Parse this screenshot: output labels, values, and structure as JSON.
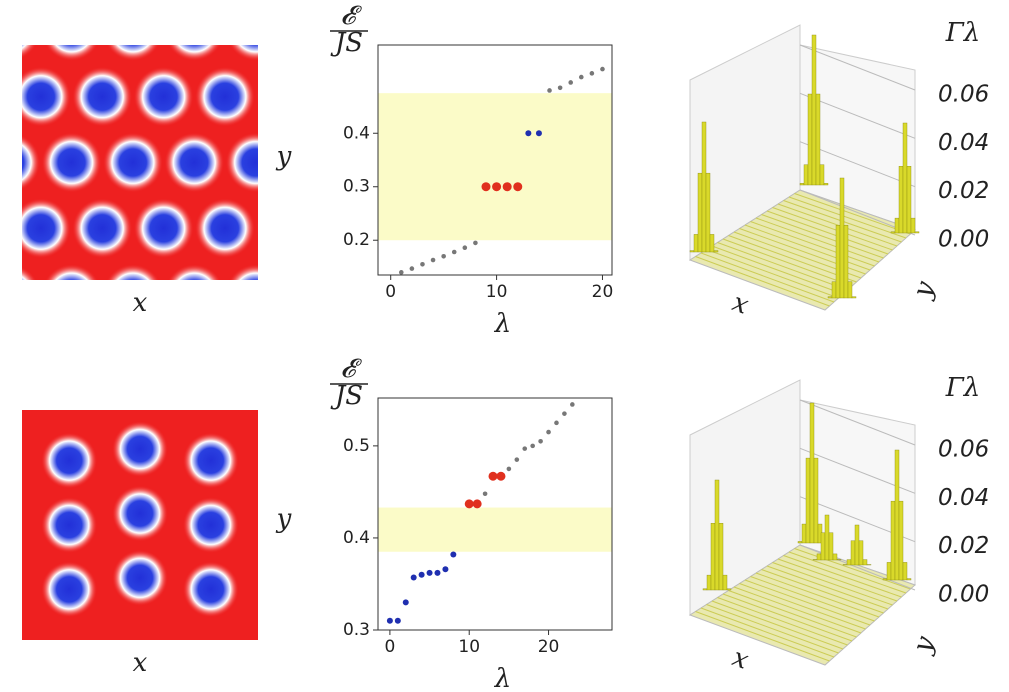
{
  "chart_data": [
    {
      "type": "lattice",
      "xlabel": "x",
      "ylabel": "y"
    },
    {
      "type": "scatter",
      "ylabel_top": "𝓔",
      "ylabel_bottom": "JS",
      "xlabel": "λ",
      "xlim": [
        -1.2,
        20.9
      ],
      "ylim": [
        0.135,
        0.565
      ],
      "xticks": [
        0,
        10,
        20
      ],
      "yticks": [
        0.2,
        0.3,
        0.4
      ],
      "band": [
        0.2,
        0.475
      ],
      "band_color": "#fbfbc8",
      "series": [
        {
          "color": "#777777",
          "x": [
            1,
            2,
            3,
            4,
            5,
            6,
            7,
            8
          ],
          "values": [
            0.14,
            0.147,
            0.155,
            0.163,
            0.17,
            0.178,
            0.186,
            0.195
          ]
        },
        {
          "color": "#e0301e",
          "x": [
            9,
            10,
            11,
            12
          ],
          "values": [
            0.3,
            0.3,
            0.3,
            0.3
          ]
        },
        {
          "color": "#1f2fb0",
          "x": [
            13,
            14
          ],
          "values": [
            0.4,
            0.4
          ]
        },
        {
          "color": "#777777",
          "x": [
            15,
            16,
            17,
            18,
            19,
            20
          ],
          "values": [
            0.48,
            0.485,
            0.495,
            0.505,
            0.512,
            0.52
          ]
        }
      ]
    },
    {
      "type": "bar3d",
      "zlabel": "Γλ",
      "xlabel": "x",
      "ylabel": "y",
      "zlim": [
        0,
        0.06
      ],
      "zticks": [
        {
          "value": 0,
          "label": "0.00"
        },
        {
          "value": 0.02,
          "label": "0.02"
        },
        {
          "value": 0.04,
          "label": "0.04"
        },
        {
          "value": 0.06,
          "label": "0.06"
        }
      ],
      "color": "#d9d92a"
    },
    {
      "type": "lattice",
      "xlabel": "x",
      "ylabel": "y"
    },
    {
      "type": "scatter",
      "ylabel_top": "𝓔",
      "ylabel_bottom": "JS",
      "xlabel": "λ",
      "xlim": [
        -1.5,
        28
      ],
      "ylim": [
        0.3,
        0.552
      ],
      "xticks": [
        0,
        10,
        20
      ],
      "yticks": [
        0.3,
        0.4,
        0.5
      ],
      "band": [
        0.385,
        0.433
      ],
      "band_color": "#fbfbc8",
      "series": [
        {
          "color": "#1f2fb0",
          "x": [
            0,
            1,
            2,
            3,
            4,
            5,
            6,
            7,
            8
          ],
          "values": [
            0.31,
            0.31,
            0.33,
            0.357,
            0.36,
            0.362,
            0.362,
            0.366,
            0.382
          ]
        },
        {
          "color": "#e0301e",
          "x": [
            10,
            11
          ],
          "values": [
            0.437,
            0.437
          ]
        },
        {
          "color": "#777777",
          "x": [
            12
          ],
          "values": [
            0.448
          ]
        },
        {
          "color": "#e0301e",
          "x": [
            13,
            14
          ],
          "values": [
            0.467,
            0.467
          ]
        },
        {
          "color": "#777777",
          "x": [
            15,
            16,
            17,
            18,
            19,
            20,
            21,
            22,
            23
          ],
          "values": [
            0.475,
            0.485,
            0.497,
            0.5,
            0.505,
            0.515,
            0.525,
            0.535,
            0.545
          ]
        }
      ]
    },
    {
      "type": "bar3d",
      "zlabel": "Γλ",
      "xlabel": "x",
      "ylabel": "y",
      "zlim": [
        0,
        0.06
      ],
      "zticks": [
        {
          "value": 0,
          "label": "0.00"
        },
        {
          "value": 0.02,
          "label": "0.02"
        },
        {
          "value": 0.04,
          "label": "0.04"
        },
        {
          "value": 0.06,
          "label": "0.06"
        }
      ],
      "color": "#d9d92a"
    }
  ]
}
